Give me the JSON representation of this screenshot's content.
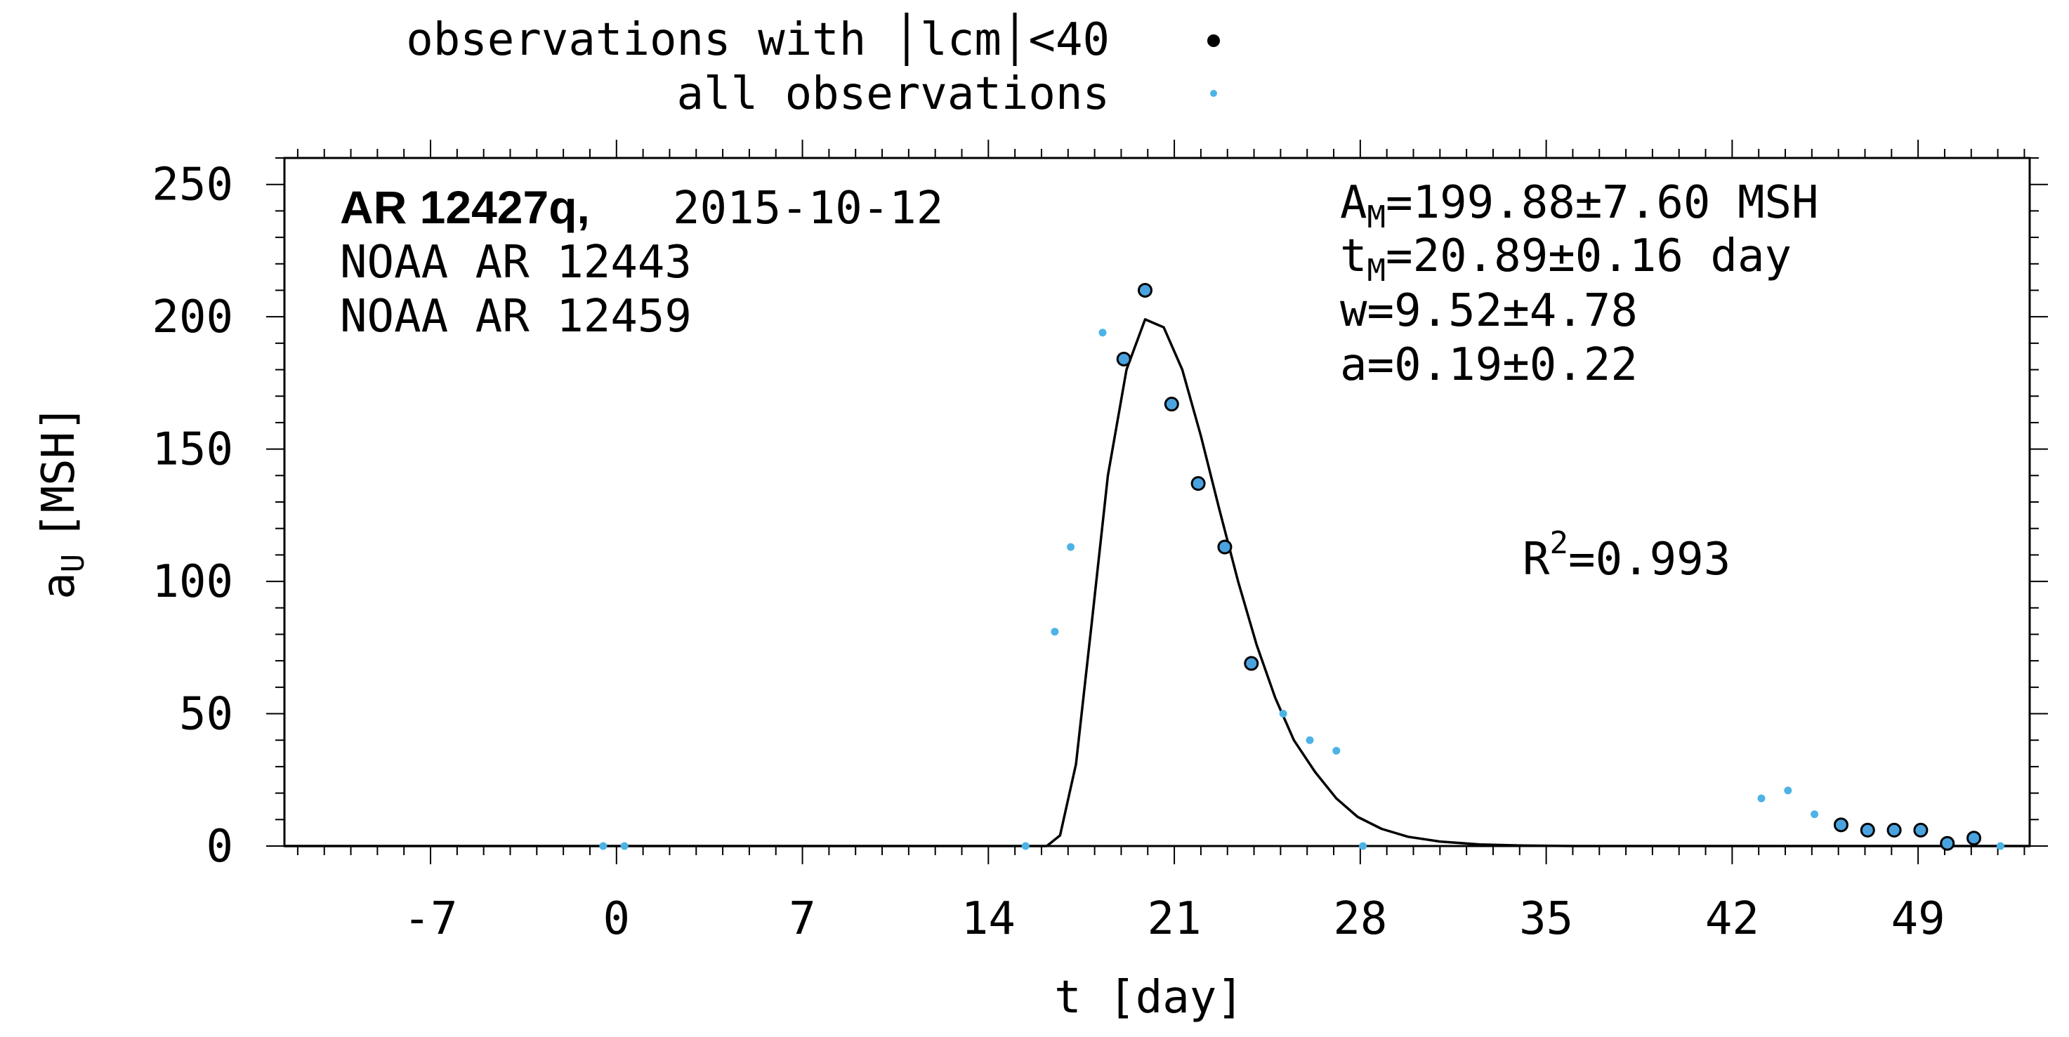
{
  "chart_data": {
    "type": "scatter",
    "xlabel": "t [day]",
    "ylabel": "a",
    "ylabel_sub": "U",
    "ylabel_unit": "[MSH]",
    "xlim": [
      -12.5,
      53.2
    ],
    "ylim": [
      0,
      260
    ],
    "xticks": [
      -7,
      0,
      7,
      14,
      21,
      28,
      35,
      42,
      49
    ],
    "yticks": [
      0,
      50,
      100,
      150,
      200,
      250
    ],
    "x_minor_step": 1,
    "y_minor_step": 10,
    "legend": {
      "placement": "top",
      "entries": [
        {
          "label": "observations with │lcm│<40",
          "marker": "filled-circle"
        },
        {
          "label": "all observations",
          "marker": "small-dot"
        }
      ]
    },
    "annotations": {
      "region_name": "AR 12427q,",
      "date": "2015-10-12",
      "noaa_1": "NOAA AR 12443",
      "noaa_2": "NOAA AR 12459",
      "am_prefix": "A",
      "am_sub": "M",
      "am_value": "=199.88±7.60 MSH",
      "tm_prefix": "t",
      "tm_sub": "M",
      "tm_value": "=20.89±0.16 day",
      "w": "w=9.52±4.78",
      "a": "a=0.19±0.22",
      "r2_prefix": "R",
      "r2_sup": "2",
      "r2_value": "=0.993"
    },
    "colors": {
      "observation_fill": "#4aa3df",
      "all_observations": "#4db3e6",
      "fit_line": "#000000",
      "legend_black_dot": "#000000"
    },
    "series": [
      {
        "name": "observations with │lcm│<40",
        "points": [
          [
            19.1,
            184
          ],
          [
            19.9,
            210
          ],
          [
            20.9,
            167
          ],
          [
            21.9,
            137
          ],
          [
            22.9,
            113
          ],
          [
            23.9,
            69
          ],
          [
            46.1,
            8
          ],
          [
            47.1,
            6
          ],
          [
            48.1,
            6
          ],
          [
            49.1,
            6
          ],
          [
            50.1,
            1
          ],
          [
            51.1,
            3
          ]
        ]
      },
      {
        "name": "all observations",
        "points": [
          [
            -0.5,
            0
          ],
          [
            0.3,
            0
          ],
          [
            15.4,
            0
          ],
          [
            16.5,
            81
          ],
          [
            17.1,
            113
          ],
          [
            18.3,
            194
          ],
          [
            19.1,
            184
          ],
          [
            19.9,
            210
          ],
          [
            20.9,
            167
          ],
          [
            21.9,
            137
          ],
          [
            22.9,
            113
          ],
          [
            23.9,
            69
          ],
          [
            25.1,
            50
          ],
          [
            26.1,
            40
          ],
          [
            27.1,
            36
          ],
          [
            28.1,
            0
          ],
          [
            43.1,
            18
          ],
          [
            44.1,
            21
          ],
          [
            45.1,
            12
          ],
          [
            46.1,
            8
          ],
          [
            47.1,
            6
          ],
          [
            48.1,
            6
          ],
          [
            49.1,
            6
          ],
          [
            50.1,
            1
          ],
          [
            51.1,
            3
          ],
          [
            52.1,
            0
          ]
        ]
      },
      {
        "name": "",
        "type": "line",
        "points": [
          [
            -12.5,
            0
          ],
          [
            15.7,
            0
          ],
          [
            16.2,
            0
          ],
          [
            16.7,
            4
          ],
          [
            17.3,
            31
          ],
          [
            17.9,
            85
          ],
          [
            18.5,
            140
          ],
          [
            19.2,
            180
          ],
          [
            19.9,
            199
          ],
          [
            20.6,
            196
          ],
          [
            21.3,
            180
          ],
          [
            22.0,
            155
          ],
          [
            22.7,
            127
          ],
          [
            23.4,
            100
          ],
          [
            24.1,
            76
          ],
          [
            24.8,
            56
          ],
          [
            25.5,
            40
          ],
          [
            26.3,
            28
          ],
          [
            27.1,
            18
          ],
          [
            27.9,
            11
          ],
          [
            28.8,
            6.5
          ],
          [
            29.8,
            3.5
          ],
          [
            31.0,
            1.7
          ],
          [
            32.5,
            0.6
          ],
          [
            34.0,
            0.2
          ],
          [
            36.0,
            0
          ],
          [
            53.2,
            0
          ]
        ]
      }
    ]
  }
}
